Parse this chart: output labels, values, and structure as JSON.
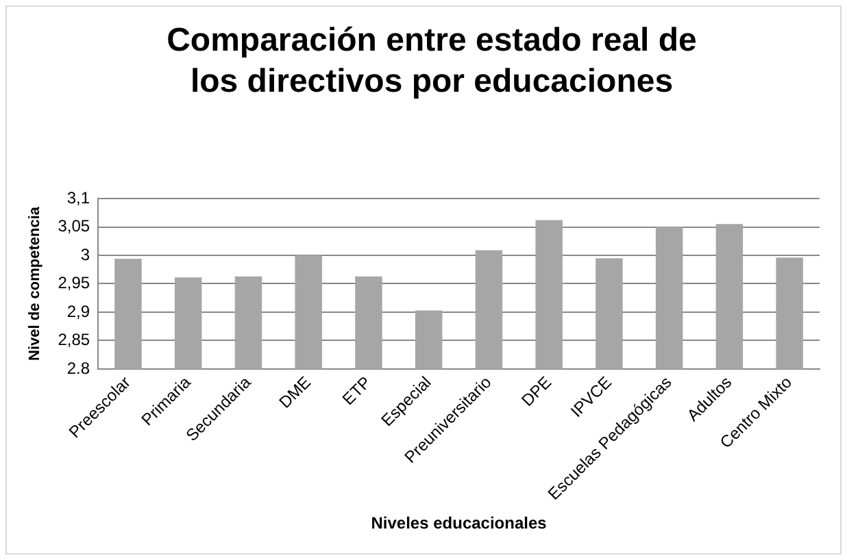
{
  "chart_data": {
    "type": "bar",
    "title": "Comparación entre estado real de los directivos por educaciones",
    "xlabel": "Niveles educacionales",
    "ylabel": "Nivel de competencia",
    "categories": [
      "Preescolar",
      "Primaria",
      "Secundaria",
      "DME",
      "ETP",
      "Especial",
      "Preuniversitario",
      "DPE",
      "IPVCE",
      "Escuelas Pedagógicas",
      "Adultos",
      "Centro Mixto"
    ],
    "values": [
      2.994,
      2.961,
      2.963,
      3.0,
      2.963,
      2.903,
      3.009,
      3.062,
      2.995,
      3.05,
      3.055,
      2.996
    ],
    "color": "#a6a6a6",
    "ylim": [
      2.8,
      3.1
    ],
    "yticks": [
      2.8,
      {
        "value": 2.85,
        "label": "2,85"
      },
      {
        "value": 2.9,
        "label": "2,9"
      },
      {
        "value": 2.95,
        "label": "2,95"
      },
      3,
      {
        "value": 3.05,
        "label": "3,05"
      },
      {
        "value": 3.1,
        "label": "3,1"
      }
    ],
    "grid": "y",
    "legend": false
  }
}
